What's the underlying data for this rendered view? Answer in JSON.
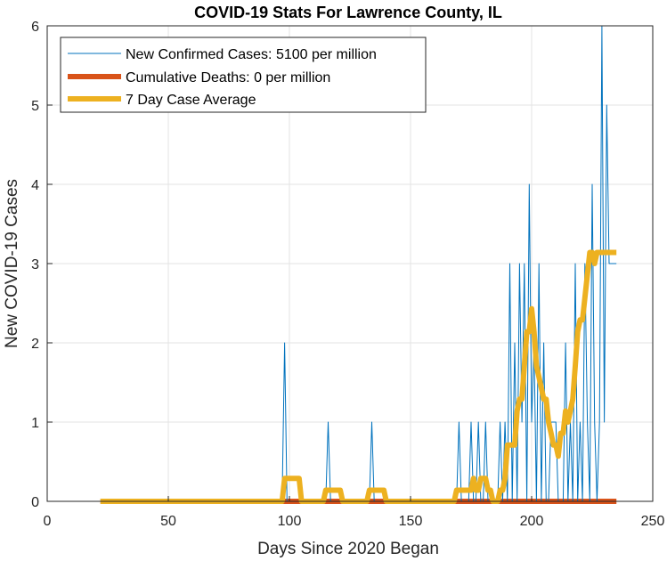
{
  "chart_data": {
    "type": "line",
    "title": "COVID-19 Stats For Lawrence County, IL",
    "xlabel": "Days Since 2020 Began",
    "ylabel": "New COVID-19 Cases",
    "xlim": [
      0,
      250
    ],
    "ylim": [
      0,
      6
    ],
    "xticks": [
      0,
      50,
      100,
      150,
      200,
      250
    ],
    "yticks": [
      0,
      1,
      2,
      3,
      4,
      5,
      6
    ],
    "grid": true,
    "legend_position": "top-left",
    "series": [
      {
        "name": "New Confirmed Cases: 5100 per million",
        "color": "#0072BD",
        "line_width": "thin",
        "x": [
          22,
          96,
          97,
          98,
          99,
          114,
          115,
          116,
          117,
          132,
          133,
          134,
          135,
          168,
          169,
          170,
          171,
          173,
          174,
          175,
          176,
          177,
          178,
          179,
          180,
          181,
          182,
          183,
          184,
          185,
          186,
          187,
          188,
          189,
          190,
          191,
          192,
          193,
          194,
          195,
          196,
          197,
          198,
          199,
          200,
          201,
          202,
          203,
          204,
          205,
          206,
          207,
          208,
          209,
          210,
          211,
          212,
          213,
          214,
          215,
          216,
          217,
          218,
          219,
          220,
          221,
          222,
          223,
          224,
          225,
          226,
          227,
          228,
          229,
          230,
          231,
          232,
          233,
          234,
          235
        ],
        "y": [
          0,
          0,
          0,
          2,
          0,
          0,
          0,
          1,
          0,
          0,
          0,
          1,
          0,
          0,
          0,
          1,
          0,
          0,
          0,
          1,
          0,
          0,
          1,
          0,
          0,
          1,
          0,
          0,
          0,
          0,
          0,
          1,
          0,
          1,
          0,
          3,
          0,
          2,
          0,
          3,
          1,
          3,
          0,
          4,
          1,
          2,
          0,
          3,
          0,
          2,
          0,
          0,
          1,
          1,
          1,
          0,
          0,
          0,
          2,
          0,
          1,
          0,
          3,
          0,
          1,
          0,
          3,
          1,
          0,
          4,
          1,
          0,
          1,
          6,
          1,
          5,
          3,
          3,
          3,
          3
        ],
        "x_plot": [
          22,
          96,
          97,
          98,
          99,
          114,
          115,
          116,
          117,
          132,
          133,
          134,
          135,
          168,
          169,
          170,
          171,
          173,
          174,
          175,
          176,
          177,
          178,
          179,
          180,
          181,
          182,
          183,
          184,
          185,
          186,
          187,
          188,
          189,
          190,
          191,
          192,
          193,
          194,
          195,
          196,
          197,
          198,
          199,
          200,
          201,
          202,
          203,
          204,
          205,
          206,
          207,
          208,
          209,
          210,
          211,
          212,
          213,
          214,
          215,
          216,
          217,
          218,
          219,
          220,
          221,
          222,
          223,
          224,
          225,
          226,
          227,
          228,
          229,
          230,
          231,
          232,
          233,
          234,
          235
        ]
      },
      {
        "name": "Cumulative Deaths: 0 per million",
        "color": "#D95319",
        "line_width": "thick",
        "x": [
          22,
          235
        ],
        "y": [
          0,
          0
        ]
      },
      {
        "name": "7 Day Case Average",
        "color": "#EDB120",
        "line_width": "thick",
        "x": [
          22,
          97,
          98,
          104,
          105,
          114,
          115,
          121,
          122,
          132,
          133,
          139,
          140,
          168,
          169,
          174,
          175,
          176,
          177,
          178,
          179,
          180,
          181,
          182,
          183,
          184,
          185,
          186,
          187,
          188,
          189,
          190,
          191,
          192,
          193,
          194,
          195,
          196,
          197,
          198,
          199,
          200,
          201,
          202,
          203,
          204,
          205,
          206,
          207,
          208,
          209,
          210,
          211,
          212,
          213,
          214,
          215,
          216,
          217,
          218,
          219,
          220,
          221,
          222,
          223,
          224,
          225,
          226,
          227,
          228,
          229,
          230,
          231,
          232,
          233,
          234,
          235
        ],
        "y": [
          0,
          0,
          0.29,
          0.29,
          0,
          0,
          0.14,
          0.14,
          0,
          0,
          0.14,
          0.14,
          0,
          0,
          0.14,
          0.14,
          0.14,
          0.29,
          0.14,
          0.14,
          0.29,
          0.29,
          0.29,
          0.14,
          0.14,
          0,
          0,
          0,
          0.14,
          0.14,
          0.29,
          0.71,
          0.71,
          0.71,
          0.71,
          1.14,
          1.29,
          1.29,
          1.71,
          2.14,
          2.14,
          2.43,
          2.14,
          1.71,
          1.57,
          1.43,
          1.29,
          1.29,
          1.0,
          0.86,
          0.71,
          0.71,
          0.57,
          0.86,
          0.86,
          1.14,
          1.0,
          1.14,
          1.29,
          1.71,
          2.14,
          2.29,
          2.29,
          2.57,
          2.86,
          3.14,
          3.14,
          3.0,
          3.14,
          3.14,
          3.14,
          3.14,
          3.14,
          3.14,
          3.14,
          3.14,
          3.14
        ]
      }
    ]
  }
}
